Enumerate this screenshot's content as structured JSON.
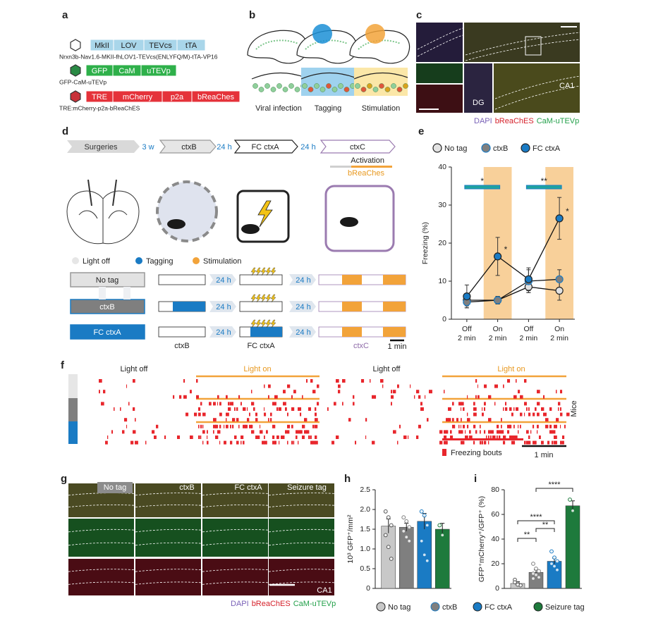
{
  "a": {
    "label": "a",
    "constructs": [
      {
        "parts": [
          "MkII",
          "LOV",
          "TEVcs",
          "tTA"
        ],
        "caption": "Nrxn3b-Nav1.6-MKII-fhLOV1-TEVcs(ENLYFQ/M)-tTA-VP16"
      },
      {
        "parts": [
          "GFP",
          "CaM",
          "uTEVp"
        ],
        "caption": "GFP-CaM-uTEVp"
      },
      {
        "parts": [
          "TRE",
          "mCherry",
          "p2a",
          "bReaChes"
        ],
        "caption": "TRE:mCherry-p2a-bReaChES"
      }
    ]
  },
  "b": {
    "label": "b",
    "steps": [
      "Viral infection",
      "Tagging",
      "Stimulation"
    ]
  },
  "c": {
    "label": "c",
    "regions": [
      "DG",
      "CA1"
    ],
    "stains": [
      "DAPI",
      "bReaChES",
      "CaM-uTEVp"
    ]
  },
  "d": {
    "label": "d",
    "timeline": [
      "Surgeries",
      "3 w",
      "ctxB",
      "24 h",
      "FC ctxA",
      "24 h",
      "ctxC"
    ],
    "activation": "Activation",
    "opsin": "bReaChes",
    "legend": [
      "Light off",
      "Tagging",
      "Stimulation"
    ],
    "groups": [
      "No tag",
      "ctxB",
      "FC ctxA"
    ],
    "intervals": [
      "24 h",
      "24 h",
      "24 h",
      "24 h",
      "24 h",
      "24 h"
    ],
    "contexts": [
      "ctxB",
      "FC ctxA",
      "ctxC"
    ],
    "scale": "1 min"
  },
  "f": {
    "label": "f",
    "phases": [
      "Light off",
      "Light on",
      "Light off",
      "Light on"
    ],
    "y_label": "Mice",
    "bouts": "Freezing bouts",
    "scale": "1 min"
  },
  "g": {
    "label": "g",
    "groups": [
      "No tag",
      "ctxB",
      "FC ctxA",
      "Seizure tag"
    ],
    "region": "CA1",
    "stains": [
      "DAPI",
      "bReaChES",
      "CaM-uTEVp"
    ]
  },
  "legend": [
    "No tag",
    "ctxB",
    "FC ctxA",
    "Seizure tag"
  ],
  "chart_data": [
    {
      "label": "e",
      "type": "line",
      "y_label": "Freezing (%)",
      "categories": [
        "Off",
        "On",
        "Off",
        "On"
      ],
      "category_sublabels": [
        "2 min",
        "2 min",
        "2 min",
        "2 min"
      ],
      "ylim": [
        0,
        40
      ],
      "yticks": [
        0,
        10,
        20,
        30,
        40
      ],
      "highlight_color": "#f8d09a",
      "series": [
        {
          "name": "No tag",
          "color": "#e2e2e2",
          "values": [
            5,
            5,
            8.5,
            7.5
          ],
          "errors": [
            1.5,
            1,
            1.5,
            2.5
          ]
        },
        {
          "name": "ctxB",
          "color": "#7f7f7f",
          "values": [
            4.5,
            5,
            10,
            10.5
          ],
          "errors": [
            1.5,
            1,
            3,
            2.5
          ]
        },
        {
          "name": "FC ctxA",
          "color": "#1a7bc4",
          "values": [
            6,
            16.5,
            10.5,
            26.5
          ],
          "errors": [
            3,
            5,
            3,
            5.5
          ]
        }
      ],
      "brackets": [
        "*",
        "**"
      ],
      "point_marks": [
        "*",
        "*"
      ]
    },
    {
      "label": "h",
      "type": "bar",
      "y_label": "10³ GFP⁺/mm²",
      "ylim": [
        0,
        2.5
      ],
      "yticks": [
        0,
        0.5,
        {
          "value": 1,
          "label": "1.0"
        },
        1.5,
        {
          "value": 2,
          "label": "2.0"
        },
        2.5
      ],
      "colors": [
        "#c8c8c8",
        "#7f7f7f",
        "#1a7bc4",
        "#1e7a3c"
      ],
      "values": [
        1.58,
        1.55,
        1.7,
        1.5
      ],
      "errors": [
        0.18,
        0.1,
        0.2,
        0.15
      ],
      "points": [
        [
          1.95,
          1.8,
          1.6,
          1.35,
          1.05,
          0.75
        ],
        [
          1.8,
          1.7,
          1.55,
          1.45,
          1.3,
          1.2
        ],
        [
          1.95,
          1.85,
          1.6,
          1.2,
          0.85,
          0.7
        ],
        [
          1.6,
          1.35
        ]
      ]
    },
    {
      "label": "i",
      "type": "bar",
      "y_label": "GFP⁺mCherry⁺/GFP⁺ (%)",
      "ylim": [
        0,
        80
      ],
      "yticks": [
        0,
        20,
        40,
        60,
        80
      ],
      "colors": [
        "#c8c8c8",
        "#7f7f7f",
        "#1a7bc4",
        "#1e7a3c"
      ],
      "values": [
        4,
        13,
        22,
        67
      ],
      "errors": [
        1.5,
        2,
        2.5,
        4
      ],
      "points": [
        [
          7,
          4,
          2.5,
          5,
          3
        ],
        [
          20,
          16,
          14,
          12,
          11,
          9,
          8
        ],
        [
          30,
          25,
          22,
          20,
          18,
          15
        ],
        [
          72,
          63
        ]
      ],
      "significance": [
        "****",
        "****",
        "**",
        "**"
      ]
    }
  ]
}
